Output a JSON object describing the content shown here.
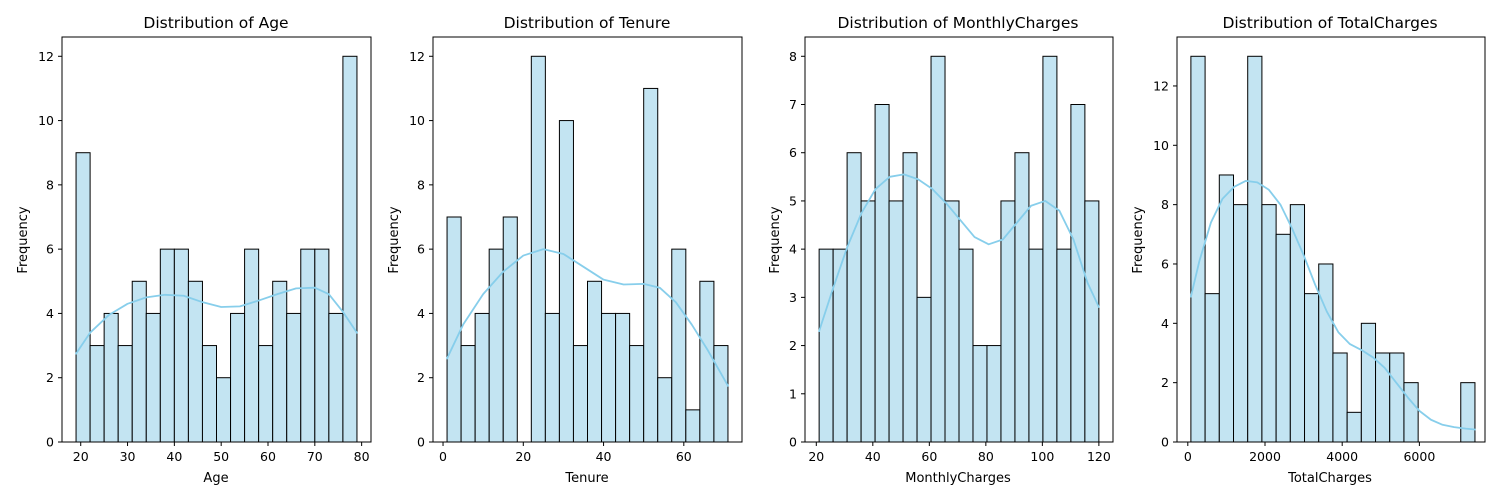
{
  "chart_data": [
    {
      "type": "bar",
      "title": "Distribution of Age",
      "xlabel": "Age",
      "ylabel": "Frequency",
      "xlim": [
        16,
        82
      ],
      "ylim": [
        0,
        12.6
      ],
      "xticks": [
        20,
        30,
        40,
        50,
        60,
        70,
        80
      ],
      "yticks": [
        0,
        2,
        4,
        6,
        8,
        10,
        12
      ],
      "bin_start": 19,
      "bin_width": 3,
      "values": [
        9,
        3,
        4,
        3,
        5,
        4,
        6,
        6,
        5,
        3,
        2,
        4,
        6,
        3,
        5,
        4,
        6,
        6,
        4,
        12
      ],
      "kde": [
        [
          19,
          2.75
        ],
        [
          22,
          3.4
        ],
        [
          26,
          3.95
        ],
        [
          30,
          4.3
        ],
        [
          34,
          4.5
        ],
        [
          38,
          4.58
        ],
        [
          42,
          4.55
        ],
        [
          46,
          4.35
        ],
        [
          50,
          4.2
        ],
        [
          54,
          4.22
        ],
        [
          58,
          4.4
        ],
        [
          62,
          4.6
        ],
        [
          66,
          4.78
        ],
        [
          70,
          4.8
        ],
        [
          73,
          4.6
        ],
        [
          76,
          4.05
        ],
        [
          79,
          3.4
        ]
      ],
      "bar_fill": "#c3e4f2",
      "kde_color": "#87ceeb"
    },
    {
      "type": "bar",
      "title": "Distribution of Tenure",
      "xlabel": "Tenure",
      "ylabel": "Frequency",
      "xlim": [
        -2.5,
        74.5
      ],
      "ylim": [
        0,
        12.6
      ],
      "xticks": [
        0,
        20,
        40,
        60
      ],
      "yticks": [
        0,
        2,
        4,
        6,
        8,
        10,
        12
      ],
      "bin_start": 1,
      "bin_width": 3.5,
      "values": [
        7,
        3,
        4,
        6,
        7,
        0,
        12,
        4,
        10,
        3,
        5,
        4,
        4,
        3,
        11,
        2,
        6,
        1,
        5,
        3
      ],
      "kde": [
        [
          1,
          2.6
        ],
        [
          5,
          3.65
        ],
        [
          10,
          4.6
        ],
        [
          15,
          5.3
        ],
        [
          20,
          5.8
        ],
        [
          25,
          6.0
        ],
        [
          30,
          5.85
        ],
        [
          35,
          5.45
        ],
        [
          40,
          5.05
        ],
        [
          45,
          4.9
        ],
        [
          50,
          4.92
        ],
        [
          54,
          4.8
        ],
        [
          58,
          4.35
        ],
        [
          62,
          3.65
        ],
        [
          66,
          2.85
        ],
        [
          71,
          1.75
        ]
      ],
      "bar_fill": "#c3e4f2",
      "kde_color": "#87ceeb"
    },
    {
      "type": "bar",
      "title": "Distribution of MonthlyCharges",
      "xlabel": "MonthlyCharges",
      "ylabel": "Frequency",
      "xlim": [
        16,
        125
      ],
      "ylim": [
        0,
        8.4
      ],
      "xticks": [
        20,
        40,
        60,
        80,
        100,
        120
      ],
      "yticks": [
        0,
        1,
        2,
        3,
        4,
        5,
        6,
        7,
        8
      ],
      "bin_start": 21,
      "bin_width": 4.95,
      "values": [
        4,
        4,
        6,
        5,
        7,
        5,
        6,
        3,
        8,
        5,
        4,
        2,
        2,
        5,
        6,
        4,
        8,
        4,
        7,
        5
      ],
      "kde": [
        [
          21,
          2.3
        ],
        [
          26,
          3.2
        ],
        [
          31,
          4.05
        ],
        [
          36,
          4.75
        ],
        [
          41,
          5.25
        ],
        [
          46,
          5.5
        ],
        [
          51,
          5.55
        ],
        [
          56,
          5.45
        ],
        [
          61,
          5.25
        ],
        [
          66,
          4.95
        ],
        [
          71,
          4.6
        ],
        [
          76,
          4.25
        ],
        [
          81,
          4.1
        ],
        [
          86,
          4.2
        ],
        [
          91,
          4.55
        ],
        [
          96,
          4.9
        ],
        [
          101,
          5.0
        ],
        [
          106,
          4.8
        ],
        [
          111,
          4.2
        ],
        [
          116,
          3.3
        ],
        [
          120,
          2.8
        ]
      ],
      "bar_fill": "#c3e4f2",
      "kde_color": "#87ceeb"
    },
    {
      "type": "bar",
      "title": "Distribution of TotalCharges",
      "xlabel": "TotalCharges",
      "ylabel": "Frequency",
      "xlim": [
        -280,
        7700
      ],
      "ylim": [
        0,
        13.65
      ],
      "xticks": [
        0,
        2000,
        4000,
        6000
      ],
      "yticks": [
        0,
        2,
        4,
        6,
        8,
        10,
        12
      ],
      "bin_start": 80,
      "bin_width": 368,
      "values": [
        13,
        5,
        9,
        8,
        13,
        8,
        7,
        8,
        5,
        6,
        3,
        1,
        4,
        3,
        3,
        2,
        0,
        0,
        0,
        2
      ],
      "kde": [
        [
          80,
          4.9
        ],
        [
          300,
          6.1
        ],
        [
          600,
          7.4
        ],
        [
          900,
          8.2
        ],
        [
          1200,
          8.6
        ],
        [
          1500,
          8.8
        ],
        [
          1800,
          8.75
        ],
        [
          2100,
          8.5
        ],
        [
          2400,
          8.0
        ],
        [
          2700,
          7.2
        ],
        [
          3000,
          6.3
        ],
        [
          3300,
          5.3
        ],
        [
          3600,
          4.4
        ],
        [
          3900,
          3.7
        ],
        [
          4200,
          3.3
        ],
        [
          4500,
          3.1
        ],
        [
          4800,
          2.85
        ],
        [
          5100,
          2.5
        ],
        [
          5400,
          2.0
        ],
        [
          5700,
          1.5
        ],
        [
          6000,
          1.05
        ],
        [
          6300,
          0.75
        ],
        [
          6600,
          0.58
        ],
        [
          6900,
          0.5
        ],
        [
          7200,
          0.45
        ],
        [
          7440,
          0.42
        ]
      ],
      "bar_fill": "#c3e4f2",
      "kde_color": "#87ceeb"
    }
  ]
}
